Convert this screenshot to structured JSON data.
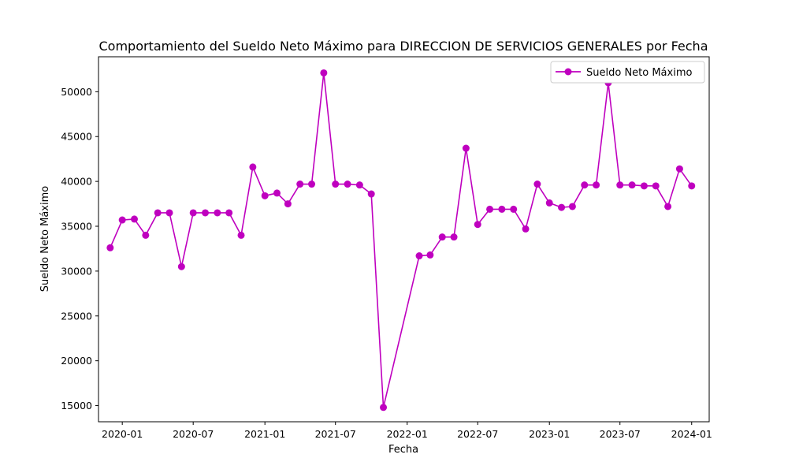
{
  "chart_data": {
    "type": "line",
    "title": "Comportamiento del Sueldo Neto Máximo para DIRECCION DE SERVICIOS GENERALES por Fecha",
    "xlabel": "Fecha",
    "ylabel": "Sueldo Neto Máximo",
    "x_ticks": [
      "2020-01",
      "2020-07",
      "2021-01",
      "2021-07",
      "2022-01",
      "2022-07",
      "2023-01",
      "2023-07",
      "2024-01"
    ],
    "y_ticks": [
      15000,
      20000,
      25000,
      30000,
      35000,
      40000,
      45000,
      50000
    ],
    "xlim": [
      "2019-11-01",
      "2024-02-15"
    ],
    "ylim": [
      13200,
      53900
    ],
    "legend": {
      "position": "top-right"
    },
    "grid": false,
    "series": [
      {
        "name": "Sueldo Neto Máximo",
        "color": "#bf00bf",
        "marker": "circle",
        "x": [
          "2019-12",
          "2020-01",
          "2020-02",
          "2020-03",
          "2020-04",
          "2020-05",
          "2020-06",
          "2020-07",
          "2020-08",
          "2020-09",
          "2020-10",
          "2020-11",
          "2020-12",
          "2021-01",
          "2021-02",
          "2021-03",
          "2021-04",
          "2021-05",
          "2021-06",
          "2021-07",
          "2021-08",
          "2021-09",
          "2021-10",
          "2021-11",
          "2022-02",
          "2022-03",
          "2022-04",
          "2022-05",
          "2022-06",
          "2022-07",
          "2022-08",
          "2022-09",
          "2022-10",
          "2022-11",
          "2022-12",
          "2023-01",
          "2023-02",
          "2023-03",
          "2023-04",
          "2023-05",
          "2023-06",
          "2023-07",
          "2023-08",
          "2023-09",
          "2023-10",
          "2023-11",
          "2023-12",
          "2024-01"
        ],
        "values": [
          32600,
          35700,
          35800,
          34000,
          36500,
          36500,
          30500,
          36500,
          36500,
          36500,
          36500,
          34000,
          41600,
          38400,
          38700,
          37500,
          39700,
          39700,
          52100,
          39700,
          39700,
          39600,
          38600,
          14800,
          31700,
          31800,
          33800,
          33800,
          43700,
          35200,
          36900,
          36900,
          36900,
          34700,
          39700,
          37600,
          37100,
          37200,
          39600,
          39600,
          51000,
          39600,
          39600,
          39500,
          39500,
          37200,
          41400,
          39500
        ]
      }
    ]
  }
}
